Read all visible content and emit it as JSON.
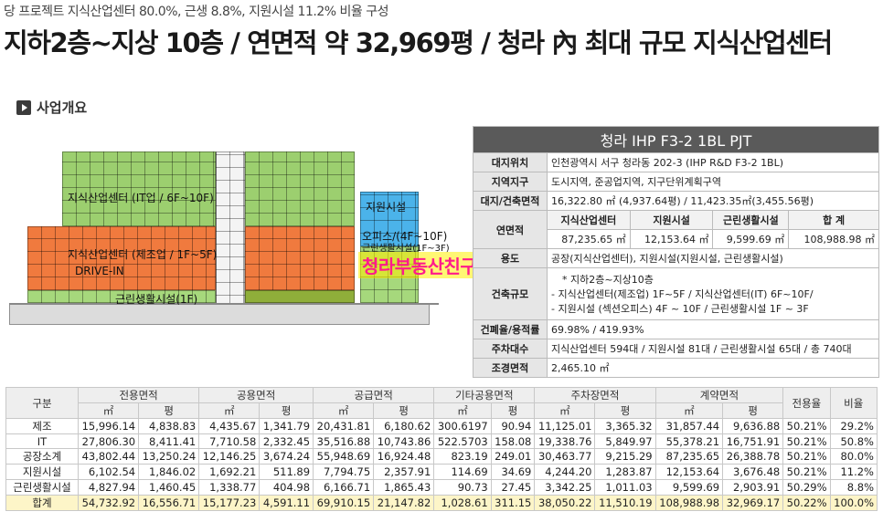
{
  "header": {
    "subtitle": "당 프로젝트 지식산업센터 80.0%, 근생 8.8%, 지원시설 11.2% 비율 구성",
    "title": "지하2층~지상 10층 / 연면적 약 32,969평 / 청라 內 최대 규모 지식산업센터"
  },
  "section": {
    "label": "사업개요",
    "icon": "play-triangle-icon"
  },
  "building": {
    "labels": {
      "it": "지식산업센터 (IT업 / 6F~10F)",
      "mfg": "지식산업센터 (제조업 / 1F~5F)",
      "drive": "DRIVE-IN",
      "retail": "근린생활시설(1F)",
      "support": "지원시설",
      "office": "오피스/(4F~10F)",
      "retail2": "근린생활시설(1F~3F)"
    },
    "watermark": "청라부동산친구",
    "colors": {
      "it": "#9ccf6f",
      "mfg": "#f07a3e",
      "support": "#4bb3ea",
      "retail": "#a6d87c"
    }
  },
  "info": {
    "project": "청라 IHP F3-2 1BL PJT",
    "rows": [
      {
        "key": "대지위치",
        "value": "인천광역시 서구 청라동 202-3 (IHP R&D F3-2 1BL)"
      },
      {
        "key": "지역지구",
        "value": "도시지역, 준공업지역, 지구단위계획구역"
      },
      {
        "key": "대지/건축면적",
        "value": "16,322.80 ㎡ (4,937.64평) / 11,423.35㎡(3,455.56평)"
      }
    ],
    "area": {
      "key": "연면적",
      "headers": [
        "지식산업센터",
        "지원시설",
        "근린생활시설",
        "합 계"
      ],
      "values": [
        "87,235.65 ㎡",
        "12,153.64 ㎡",
        "9,599.69 ㎡",
        "108,988.98 ㎡"
      ]
    },
    "use": {
      "key": "용도",
      "value": "공장(지식산업센터), 지원시설(지원시설, 근린생활시설)"
    },
    "scale": {
      "key": "건축규모",
      "lines": [
        "* 지하2층~지상10층",
        "- 지식산업센터(제조업) 1F~5F / 지식산업센터(IT) 6F~10F/",
        "- 지원시설 (섹션오피스) 4F ~ 10F / 근린생활시설 1F ~ 3F"
      ]
    },
    "rows2": [
      {
        "key": "건폐율/용적률",
        "value": "69.98% / 419.93%"
      },
      {
        "key": "주차대수",
        "value": "지식산업센터 594대 / 지원시설 81대 / 근린생활시설 65대 / 총 740대"
      },
      {
        "key": "조경면적",
        "value": "2,465.10 ㎡"
      }
    ]
  },
  "summary": {
    "col_label": "구분",
    "groups": [
      "전용면적",
      "공용면적",
      "공급면적",
      "기타공용면적",
      "주차장면적",
      "계약면적"
    ],
    "units": [
      "㎡",
      "평"
    ],
    "extra": [
      "전용율",
      "비율"
    ],
    "rows": [
      {
        "label": "제조",
        "values": [
          "15,996.14",
          "4,838.83",
          "4,435.67",
          "1,341.79",
          "20,431.81",
          "6,180.62",
          "300.6197",
          "90.94",
          "11,125.01",
          "3,365.32",
          "31,857.44",
          "9,636.88",
          "50.21%",
          "29.2%"
        ]
      },
      {
        "label": "IT",
        "values": [
          "27,806.30",
          "8,411.41",
          "7,710.58",
          "2,332.45",
          "35,516.88",
          "10,743.86",
          "522.5703",
          "158.08",
          "19,338.76",
          "5,849.97",
          "55,378.21",
          "16,751.91",
          "50.21%",
          "50.8%"
        ]
      },
      {
        "label": "공장소계",
        "values": [
          "43,802.44",
          "13,250.24",
          "12,146.25",
          "3,674.24",
          "55,948.69",
          "16,924.48",
          "823.19",
          "249.01",
          "30,463.77",
          "9,215.29",
          "87,235.65",
          "26,388.78",
          "50.21%",
          "80.0%"
        ]
      },
      {
        "label": "지원시설",
        "values": [
          "6,102.54",
          "1,846.02",
          "1,692.21",
          "511.89",
          "7,794.75",
          "2,357.91",
          "114.69",
          "34.69",
          "4,244.20",
          "1,283.87",
          "12,153.64",
          "3,676.48",
          "50.21%",
          "11.2%"
        ]
      },
      {
        "label": "근린생활시설",
        "values": [
          "4,827.94",
          "1,460.45",
          "1,338.77",
          "404.98",
          "6,166.71",
          "1,865.43",
          "90.73",
          "27.45",
          "3,342.25",
          "1,011.03",
          "9,599.69",
          "2,903.91",
          "50.29%",
          "8.8%"
        ]
      },
      {
        "label": "합계",
        "values": [
          "54,732.92",
          "16,556.71",
          "15,177.23",
          "4,591.11",
          "69,910.15",
          "21,147.82",
          "1,028.61",
          "311.15",
          "38,050.22",
          "11,510.19",
          "108,988.98",
          "32,969.17",
          "50.22%",
          "100.0%"
        ]
      }
    ]
  }
}
